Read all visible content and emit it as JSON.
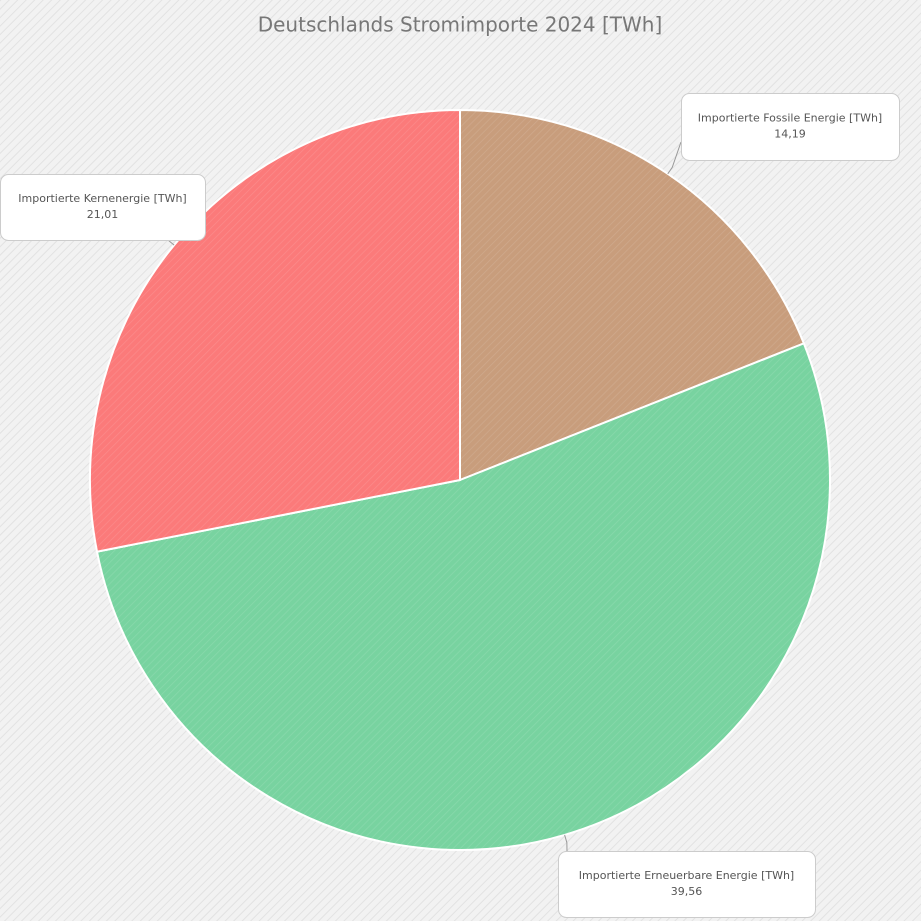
{
  "chart_data": {
    "type": "pie",
    "title": "Deutschlands Stromimporte 2024 [TWh]",
    "categories": [
      "Importierte Fossile Energie [TWh]",
      "Importierte Erneuerbare  Energie [TWh]",
      "Importierte Kernenergie [TWh]"
    ],
    "values": [
      14.19,
      39.56,
      21.01
    ],
    "value_labels": [
      "14,19",
      "39,56",
      "21,01"
    ],
    "colors": [
      "#c89d7c",
      "#78d3a0",
      "#fb7a7a"
    ]
  }
}
